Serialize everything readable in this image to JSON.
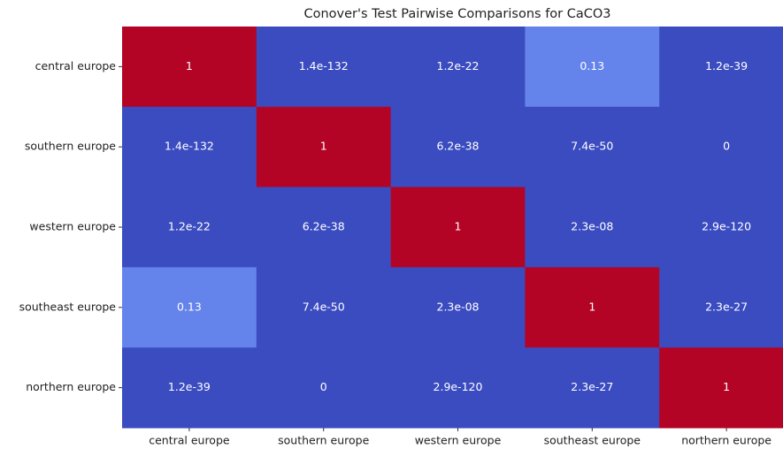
{
  "chart_data": {
    "type": "heatmap",
    "title": "Conover's Test Pairwise Comparisons for CaCO3",
    "x_categories": [
      "central europe",
      "southern europe",
      "western europe",
      "southeast europe",
      "northern europe"
    ],
    "y_categories": [
      "central europe",
      "southern europe",
      "western europe",
      "southeast europe",
      "northern europe"
    ],
    "values": [
      [
        1,
        1.4e-132,
        1.2e-22,
        0.13,
        1.2e-39
      ],
      [
        1.4e-132,
        1,
        6.2e-38,
        7.4e-50,
        0
      ],
      [
        1.2e-22,
        6.2e-38,
        1,
        2.3e-08,
        2.9e-120
      ],
      [
        0.13,
        7.4e-50,
        2.3e-08,
        1,
        2.3e-27
      ],
      [
        1.2e-39,
        0,
        2.9e-120,
        2.3e-27,
        1
      ]
    ],
    "value_labels": [
      [
        "1",
        "1.4e-132",
        "1.2e-22",
        "0.13",
        "1.2e-39"
      ],
      [
        "1.4e-132",
        "1",
        "6.2e-38",
        "7.4e-50",
        "0"
      ],
      [
        "1.2e-22",
        "6.2e-38",
        "1",
        "2.3e-08",
        "2.9e-120"
      ],
      [
        "0.13",
        "7.4e-50",
        "2.3e-08",
        "1",
        "2.3e-27"
      ],
      [
        "1.2e-39",
        "0",
        "2.9e-120",
        "2.3e-27",
        "1"
      ]
    ],
    "zlim": [
      0,
      1
    ],
    "colormap": [
      "#3b4cc0",
      "#6282ea",
      "#8db0fe",
      "#b8d0f9",
      "#dddcdc",
      "#f5c4ac",
      "#f49a7b",
      "#e7654b",
      "#b40426"
    ]
  }
}
